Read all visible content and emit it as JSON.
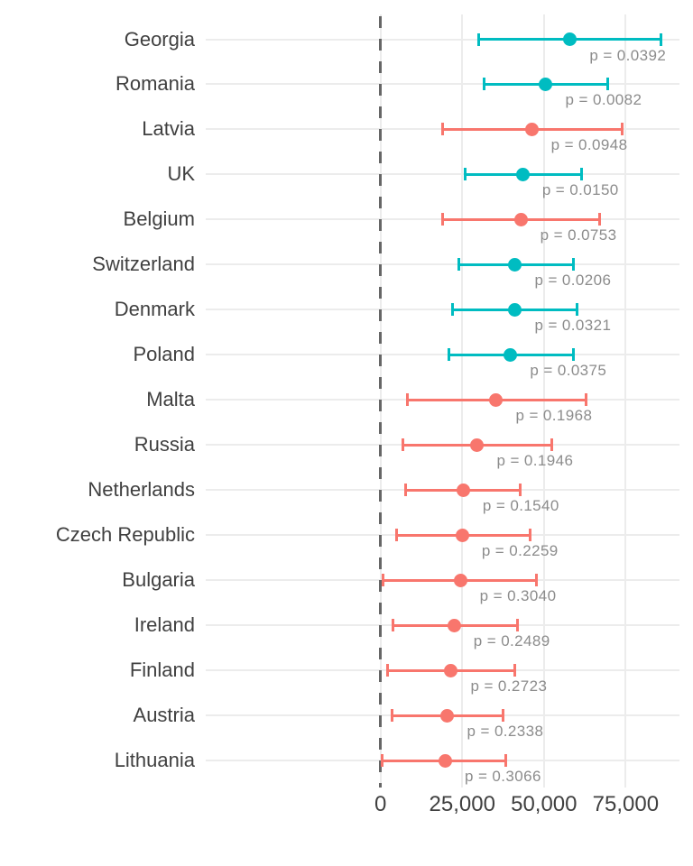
{
  "chart_data": {
    "type": "scatter",
    "subtype": "dot-and-whisker forest plot with error bars",
    "title": "",
    "xlabel": "",
    "ylabel": "",
    "grid": "on",
    "legend": "none",
    "colors": {
      "significant": "#00bcc1",
      "not_significant": "#f8766d",
      "gridline": "#ececec",
      "zero_line": "#666666",
      "axis_text": "#404040",
      "p_text": "#8c8c8c"
    },
    "x_axis": {
      "tick_values": [
        0,
        25000,
        50000,
        75000
      ],
      "tick_labels": [
        "0",
        "25,000",
        "50,000",
        "75,000"
      ],
      "range": [
        -53500,
        91500
      ],
      "zero_reference_line": {
        "value": 0,
        "style": "dashed"
      }
    },
    "rows": [
      {
        "label": "Georgia",
        "low": 30100,
        "mid": 58000,
        "high": 85900,
        "p_label": "p = 0.0392",
        "color_key": "significant"
      },
      {
        "label": "Romania",
        "low": 31700,
        "mid": 50600,
        "high": 69400,
        "p_label": "p = 0.0082",
        "color_key": "significant"
      },
      {
        "label": "Latvia",
        "low": 18900,
        "mid": 46200,
        "high": 73800,
        "p_label": "p = 0.0948",
        "color_key": "not_significant"
      },
      {
        "label": "UK",
        "low": 26000,
        "mid": 43500,
        "high": 61400,
        "p_label": "p = 0.0150",
        "color_key": "significant"
      },
      {
        "label": "Belgium",
        "low": 19000,
        "mid": 42900,
        "high": 67100,
        "p_label": "p = 0.0753",
        "color_key": "not_significant"
      },
      {
        "label": "Switzerland",
        "low": 23900,
        "mid": 41200,
        "high": 59100,
        "p_label": "p = 0.0206",
        "color_key": "significant"
      },
      {
        "label": "Denmark",
        "low": 22100,
        "mid": 41200,
        "high": 60200,
        "p_label": "p = 0.0321",
        "color_key": "significant"
      },
      {
        "label": "Poland",
        "low": 21000,
        "mid": 39800,
        "high": 58900,
        "p_label": "p = 0.0375",
        "color_key": "significant"
      },
      {
        "label": "Malta",
        "low": 8300,
        "mid": 35400,
        "high": 63000,
        "p_label": "p = 0.1968",
        "color_key": "not_significant"
      },
      {
        "label": "Russia",
        "low": 6900,
        "mid": 29600,
        "high": 52400,
        "p_label": "p = 0.1946",
        "color_key": "not_significant"
      },
      {
        "label": "Netherlands",
        "low": 7800,
        "mid": 25300,
        "high": 42800,
        "p_label": "p = 0.1540",
        "color_key": "not_significant"
      },
      {
        "label": "Czech Republic",
        "low": 4900,
        "mid": 25000,
        "high": 45800,
        "p_label": "p = 0.2259",
        "color_key": "not_significant"
      },
      {
        "label": "Bulgaria",
        "low": 900,
        "mid": 24400,
        "high": 47800,
        "p_label": "p = 0.3040",
        "color_key": "not_significant"
      },
      {
        "label": "Ireland",
        "low": 3700,
        "mid": 22500,
        "high": 41800,
        "p_label": "p = 0.2489",
        "color_key": "not_significant"
      },
      {
        "label": "Finland",
        "low": 2100,
        "mid": 21600,
        "high": 41200,
        "p_label": "p = 0.2723",
        "color_key": "not_significant"
      },
      {
        "label": "Austria",
        "low": 3500,
        "mid": 20500,
        "high": 37500,
        "p_label": "p = 0.2338",
        "color_key": "not_significant"
      },
      {
        "label": "Lithuania",
        "low": 400,
        "mid": 19800,
        "high": 38400,
        "p_label": "p = 0.3066",
        "color_key": "not_significant"
      }
    ]
  }
}
